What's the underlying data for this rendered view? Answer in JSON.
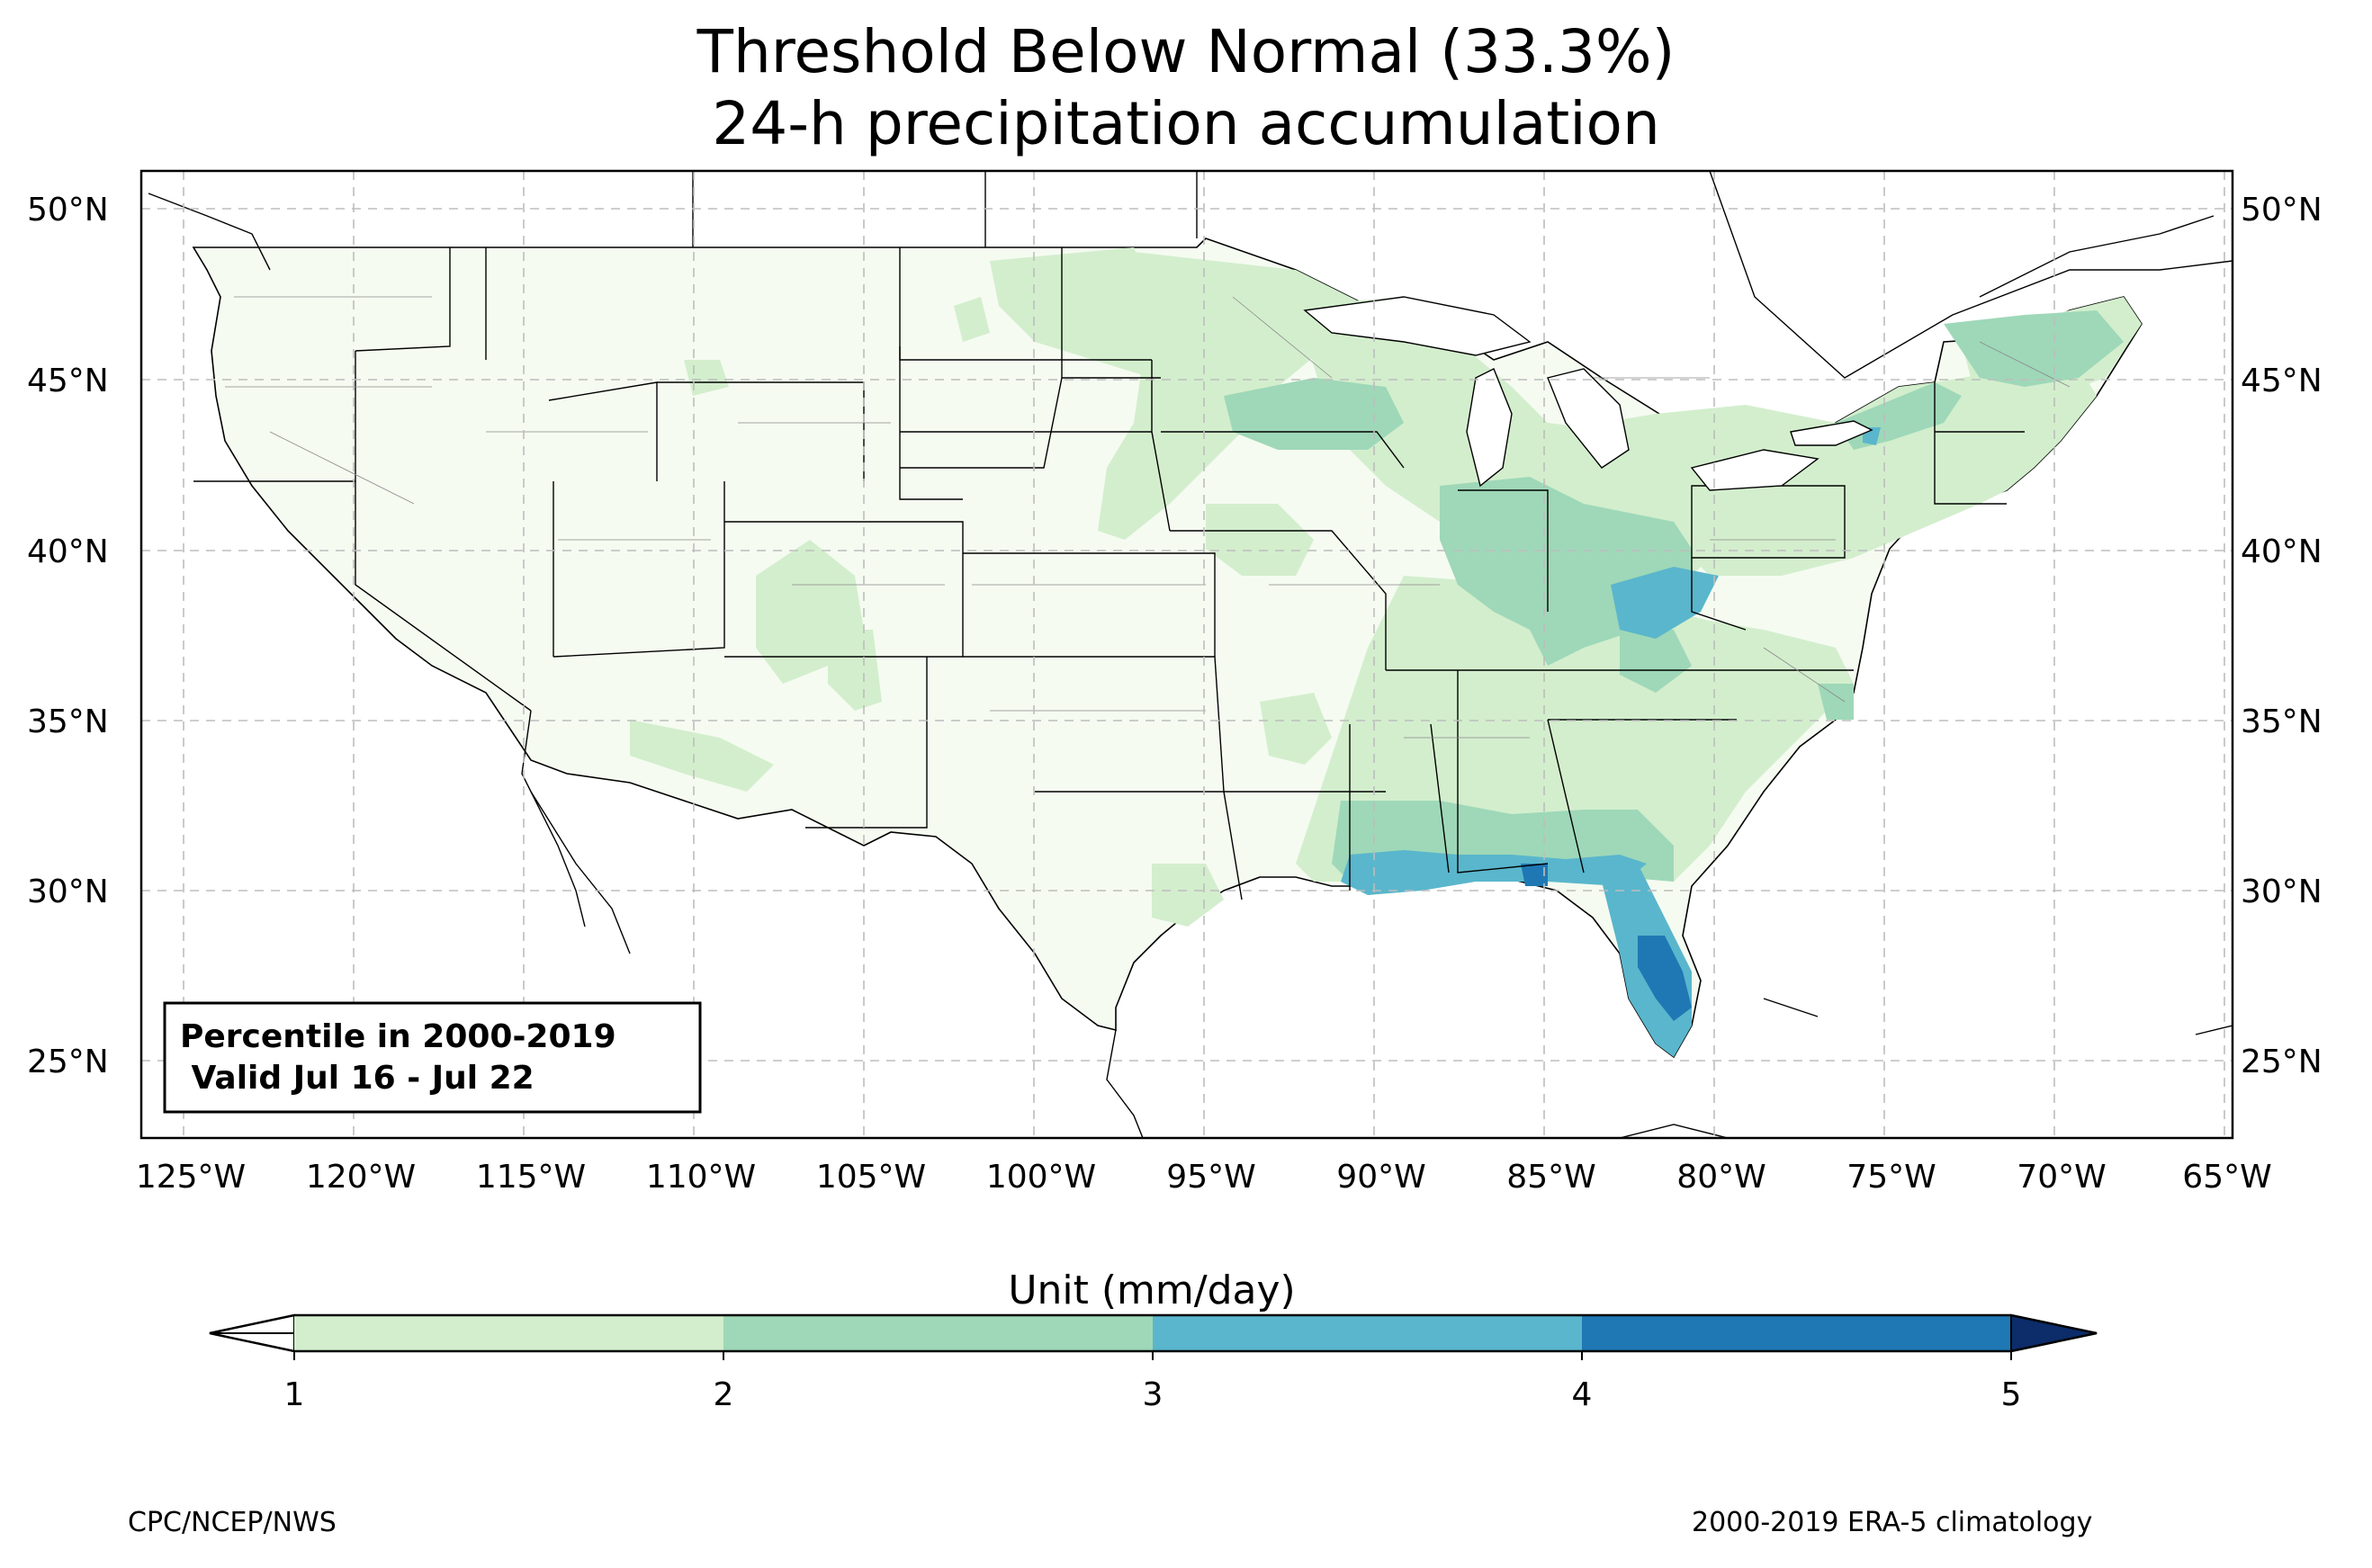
{
  "title": {
    "line1": "Threshold Below Normal (33.3%)",
    "line2": "24-h precipitation accumulation"
  },
  "map": {
    "lon_ticks": [
      "125°W",
      "120°W",
      "115°W",
      "110°W",
      "105°W",
      "100°W",
      "95°W",
      "90°W",
      "85°W",
      "80°W",
      "75°W",
      "70°W",
      "65°W"
    ],
    "lat_ticks": [
      "50°N",
      "45°N",
      "40°N",
      "35°N",
      "30°N",
      "25°N"
    ],
    "gridlines": true,
    "info_box": {
      "line1": "Percentile in 2000-2019",
      "line2": " Valid Jul 16 - Jul 22"
    }
  },
  "colorbar": {
    "label": "Unit (mm/day)",
    "ticks": [
      "1",
      "2",
      "3",
      "4",
      "5"
    ],
    "colors": {
      "below": "#ffffff",
      "bin_1_2": "#d3eecd",
      "bin_2_3": "#9ed8b8",
      "bin_3_4": "#5ab6cc",
      "bin_4_5": "#1f78b4",
      "above": "#0c2c6a",
      "base_fill": "#f5fbf1"
    }
  },
  "credits": {
    "left": "CPC/NCEP/NWS",
    "right": "2000-2019 ERA-5 climatology"
  }
}
